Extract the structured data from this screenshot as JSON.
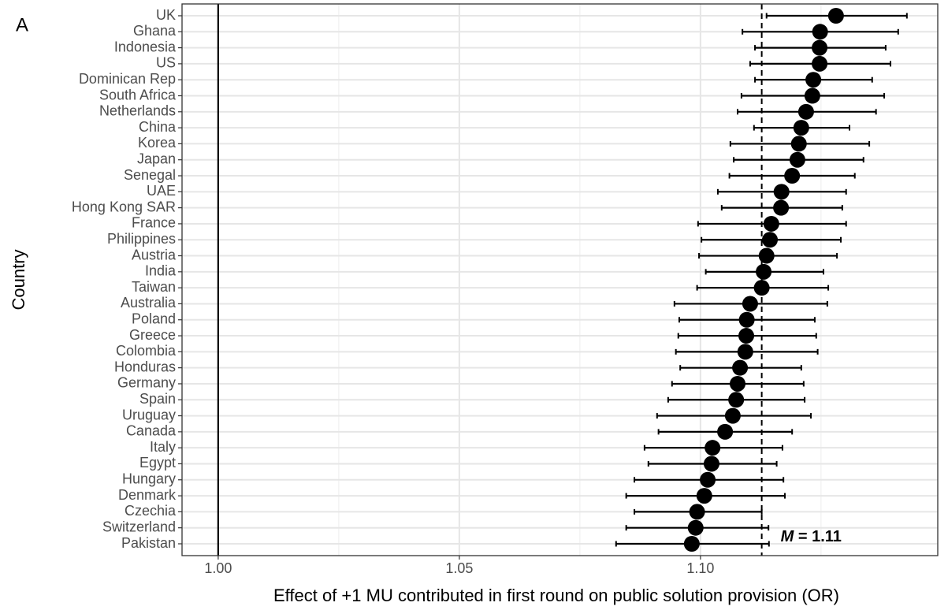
{
  "panel_label": "A",
  "chart_data": {
    "type": "forest",
    "x_label": "Effect of +1 MU contributed in first round on public solution provision (OR)",
    "y_label": "Country",
    "categories": [
      "UK",
      "Ghana",
      "Indonesia",
      "US",
      "Dominican Rep",
      "South Africa",
      "Netherlands",
      "China",
      "Korea",
      "Japan",
      "Senegal",
      "UAE",
      "Hong Kong SAR",
      "France",
      "Philippines",
      "Austria",
      "India",
      "Taiwan",
      "Australia",
      "Poland",
      "Greece",
      "Colombia",
      "Honduras",
      "Germany",
      "Spain",
      "Uruguay",
      "Canada",
      "Italy",
      "Egypt",
      "Hungary",
      "Denmark",
      "Czechia",
      "Switzerland",
      "Pakistan"
    ],
    "values": [
      1.1281,
      1.1248,
      1.1247,
      1.1247,
      1.1234,
      1.1232,
      1.1219,
      1.1209,
      1.1204,
      1.1201,
      1.119,
      1.1168,
      1.1167,
      1.1147,
      1.1144,
      1.1137,
      1.1131,
      1.1127,
      1.1103,
      1.1096,
      1.1095,
      1.1093,
      1.1082,
      1.1077,
      1.1074,
      1.1067,
      1.1051,
      1.1025,
      1.1023,
      1.1015,
      1.1008,
      1.0993,
      1.099,
      1.0982
    ],
    "lower": [
      1.1137,
      1.1087,
      1.1113,
      1.1103,
      1.1113,
      1.1085,
      1.1077,
      1.1111,
      1.1062,
      1.1069,
      1.106,
      1.1036,
      1.1044,
      1.0995,
      1.1002,
      1.0997,
      1.1011,
      1.0993,
      1.0946,
      1.0956,
      1.0954,
      1.0949,
      1.0958,
      1.0941,
      1.0933,
      1.091,
      1.0913,
      1.0884,
      1.0892,
      1.0863,
      1.0846,
      1.0863,
      1.0846,
      1.0825
    ],
    "upper": [
      1.1428,
      1.141,
      1.1384,
      1.1394,
      1.1356,
      1.1381,
      1.1364,
      1.1309,
      1.135,
      1.1338,
      1.132,
      1.1302,
      1.1294,
      1.1302,
      1.1291,
      1.1283,
      1.1255,
      1.1265,
      1.1263,
      1.1237,
      1.124,
      1.1243,
      1.1209,
      1.1214,
      1.1216,
      1.1229,
      1.119,
      1.117,
      1.1158,
      1.1172,
      1.1175,
      1.1127,
      1.1141,
      1.1142
    ],
    "color": "#000000",
    "xlim": [
      0.9925,
      1.1492
    ],
    "xticks": [
      {
        "value": 1.0,
        "label": "1.00"
      },
      {
        "value": 1.05,
        "label": "1.05"
      },
      {
        "value": 1.1,
        "label": "1.10"
      }
    ],
    "minor_xticks": [
      1.025,
      1.075,
      1.125
    ],
    "null_line": 1.0,
    "mean_line": {
      "value": 1.1127,
      "symbol": "M",
      "label": "= 1.11"
    },
    "grid": true
  }
}
